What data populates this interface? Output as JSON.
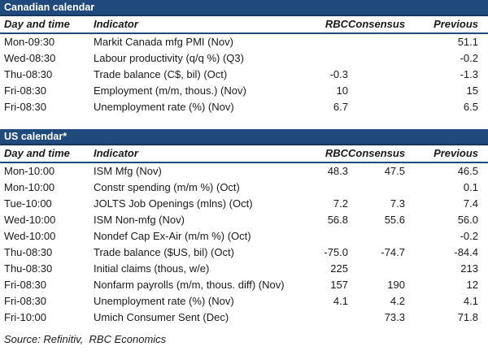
{
  "colors": {
    "navy": "#1f4a7b",
    "navy_dark": "#16365c",
    "text": "#1a1a1a",
    "title_text": "#ffffff"
  },
  "canadian": {
    "title": "Canadian calendar",
    "columns": {
      "day": "Day and time",
      "indicator": "Indicator",
      "rbc": "RBC",
      "consensus": "Consensus",
      "previous": "Previous"
    },
    "rows": [
      {
        "day": "Mon-09:30",
        "indicator": "Markit Canada mfg PMI (Nov)",
        "rbc": "",
        "consensus": "",
        "previous": "51.1"
      },
      {
        "day": "Wed-08:30",
        "indicator": "Labour productivity (q/q %) (Q3)",
        "rbc": "",
        "consensus": "",
        "previous": "-0.2"
      },
      {
        "day": "Thu-08:30",
        "indicator": "Trade balance (C$, bil) (Oct)",
        "rbc": "-0.3",
        "consensus": "",
        "previous": "-1.3"
      },
      {
        "day": "Fri-08:30",
        "indicator": "Employment (m/m, thous.) (Nov)",
        "rbc": "10",
        "consensus": "",
        "previous": "15"
      },
      {
        "day": "Fri-08:30",
        "indicator": "Unemployment rate (%) (Nov)",
        "rbc": "6.7",
        "consensus": "",
        "previous": "6.5"
      }
    ]
  },
  "us": {
    "title": "US calendar*",
    "columns": {
      "day": "Day and time",
      "indicator": "Indicator",
      "rbc": "RBC",
      "consensus": "Consensus",
      "previous": "Previous"
    },
    "rows": [
      {
        "day": "Mon-10:00",
        "indicator": "ISM Mfg (Nov)",
        "rbc": "48.3",
        "consensus": "47.5",
        "previous": "46.5"
      },
      {
        "day": "Mon-10:00",
        "indicator": "Constr spending (m/m %) (Oct)",
        "rbc": "",
        "consensus": "",
        "previous": "0.1"
      },
      {
        "day": "Tue-10:00",
        "indicator": "JOLTS Job Openings (mlns) (Oct)",
        "rbc": "7.2",
        "consensus": "7.3",
        "previous": "7.4"
      },
      {
        "day": "Wed-10:00",
        "indicator": "ISM Non-mfg (Nov)",
        "rbc": "56.8",
        "consensus": "55.6",
        "previous": "56.0"
      },
      {
        "day": "Wed-10:00",
        "indicator": "Nondef Cap Ex-Air (m/m %) (Oct)",
        "rbc": "",
        "consensus": "",
        "previous": "-0.2"
      },
      {
        "day": "Thu-08:30",
        "indicator": "Trade balance ($US, bil) (Oct)",
        "rbc": "-75.0",
        "consensus": "-74.7",
        "previous": "-84.4"
      },
      {
        "day": "Thu-08:30",
        "indicator": "Initial claims (thous, w/e)",
        "rbc": "225",
        "consensus": "",
        "previous": "213"
      },
      {
        "day": "Fri-08:30",
        "indicator": "Nonfarm payrolls (m/m, thous. diff) (Nov)",
        "rbc": "157",
        "consensus": "190",
        "previous": "12"
      },
      {
        "day": "Fri-08:30",
        "indicator": "Unemployment rate (%) (Nov)",
        "rbc": "4.1",
        "consensus": "4.2",
        "previous": "4.1"
      },
      {
        "day": "Fri-10:00",
        "indicator": "Umich Consumer Sent (Dec)",
        "rbc": "",
        "consensus": "73.3",
        "previous": "71.8"
      }
    ]
  },
  "footer": {
    "source": "Source: Refinitiv,  RBC Economics"
  }
}
